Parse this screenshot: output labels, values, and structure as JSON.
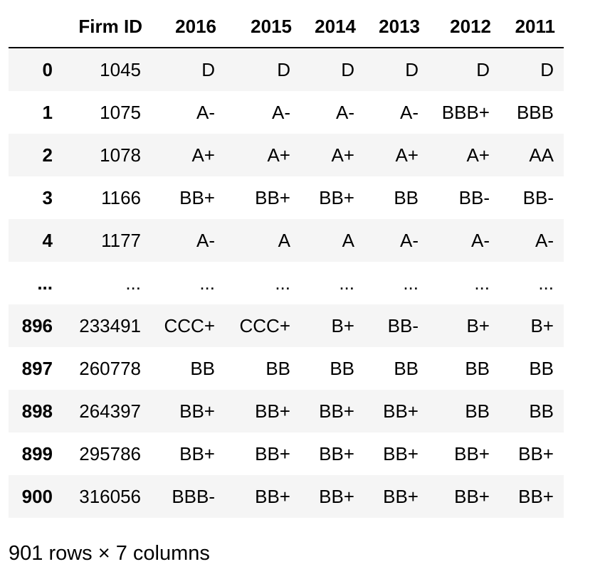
{
  "table": {
    "index_header": "",
    "columns": [
      "Firm ID",
      "2016",
      "2015",
      "2014",
      "2013",
      "2012",
      "2011"
    ],
    "rows": [
      {
        "index": "0",
        "cells": [
          "1045",
          "D",
          "D",
          "D",
          "D",
          "D",
          "D"
        ]
      },
      {
        "index": "1",
        "cells": [
          "1075",
          "A-",
          "A-",
          "A-",
          "A-",
          "BBB+",
          "BBB"
        ]
      },
      {
        "index": "2",
        "cells": [
          "1078",
          "A+",
          "A+",
          "A+",
          "A+",
          "A+",
          "AA"
        ]
      },
      {
        "index": "3",
        "cells": [
          "1166",
          "BB+",
          "BB+",
          "BB+",
          "BB",
          "BB-",
          "BB-"
        ]
      },
      {
        "index": "4",
        "cells": [
          "1177",
          "A-",
          "A",
          "A",
          "A-",
          "A-",
          "A-"
        ]
      },
      {
        "index": "...",
        "cells": [
          "...",
          "...",
          "...",
          "...",
          "...",
          "...",
          "..."
        ]
      },
      {
        "index": "896",
        "cells": [
          "233491",
          "CCC+",
          "CCC+",
          "B+",
          "BB-",
          "B+",
          "B+"
        ]
      },
      {
        "index": "897",
        "cells": [
          "260778",
          "BB",
          "BB",
          "BB",
          "BB",
          "BB",
          "BB"
        ]
      },
      {
        "index": "898",
        "cells": [
          "264397",
          "BB+",
          "BB+",
          "BB+",
          "BB+",
          "BB",
          "BB"
        ]
      },
      {
        "index": "899",
        "cells": [
          "295786",
          "BB+",
          "BB+",
          "BB+",
          "BB+",
          "BB+",
          "BB+"
        ]
      },
      {
        "index": "900",
        "cells": [
          "316056",
          "BBB-",
          "BB+",
          "BB+",
          "BB+",
          "BB+",
          "BB+"
        ]
      }
    ]
  },
  "footer": {
    "shape_text": "901 rows × 7 columns"
  },
  "colors": {
    "stripe": "#f5f5f5",
    "header_rule": "#000000",
    "text": "#000000"
  }
}
